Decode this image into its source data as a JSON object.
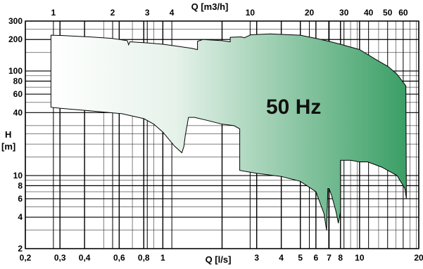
{
  "chart_data": {
    "type": "area",
    "title": "",
    "annotation": "50 Hz",
    "xlabel": "Q [l/s]",
    "x2label": "Q [m3/h]",
    "ylabel_line1": "H",
    "ylabel_line2": "[m]",
    "x_scale": "log",
    "y_scale": "log",
    "xlim": [
      0.2,
      20
    ],
    "ylim": [
      2,
      300
    ],
    "grid": true,
    "x_ticks": [
      {
        "v": 0.2,
        "label": "0,2"
      },
      {
        "v": 0.3,
        "label": "0,3"
      },
      {
        "v": 0.4,
        "label": "0,4"
      },
      {
        "v": 0.6,
        "label": "0,6"
      },
      {
        "v": 0.8,
        "label": "0,8"
      },
      {
        "v": 1,
        "label": "1"
      },
      {
        "v": 2,
        "label": ""
      },
      {
        "v": 3,
        "label": "3"
      },
      {
        "v": 4,
        "label": "4"
      },
      {
        "v": 5,
        "label": "5"
      },
      {
        "v": 6,
        "label": "6"
      },
      {
        "v": 7,
        "label": "7"
      },
      {
        "v": 8,
        "label": "8"
      },
      {
        "v": 10,
        "label": "10"
      },
      {
        "v": 20,
        "label": "20"
      }
    ],
    "x2_ticks": [
      {
        "v": 1,
        "label": "1"
      },
      {
        "v": 2,
        "label": "2"
      },
      {
        "v": 3,
        "label": "3"
      },
      {
        "v": 4,
        "label": "4"
      },
      {
        "v": 10,
        "label": "10"
      },
      {
        "v": 20,
        "label": "20"
      },
      {
        "v": 30,
        "label": "30"
      },
      {
        "v": 40,
        "label": "40"
      },
      {
        "v": 50,
        "label": "50"
      },
      {
        "v": 60,
        "label": "60"
      }
    ],
    "y_ticks": [
      {
        "v": 2,
        "label": "2"
      },
      {
        "v": 4,
        "label": "4"
      },
      {
        "v": 6,
        "label": "6"
      },
      {
        "v": 8,
        "label": "8"
      },
      {
        "v": 10,
        "label": "10"
      },
      {
        "v": 40,
        "label": "40"
      },
      {
        "v": 60,
        "label": "60"
      },
      {
        "v": 80,
        "label": "80"
      },
      {
        "v": 100,
        "label": "100"
      },
      {
        "v": 200,
        "label": "200"
      },
      {
        "v": 300,
        "label": "300"
      }
    ],
    "envelope": [
      [
        0.27,
        220
      ],
      [
        0.31,
        218
      ],
      [
        0.42,
        212
      ],
      [
        0.55,
        205
      ],
      [
        0.66,
        195
      ],
      [
        0.67,
        178
      ],
      [
        0.68,
        190
      ],
      [
        0.85,
        185
      ],
      [
        1.0,
        180
      ],
      [
        1.2,
        172
      ],
      [
        1.4,
        165
      ],
      [
        1.5,
        160
      ],
      [
        1.5,
        192
      ],
      [
        1.6,
        200
      ],
      [
        2.0,
        195
      ],
      [
        2.2,
        190
      ],
      [
        2.2,
        210
      ],
      [
        2.5,
        212
      ],
      [
        2.6,
        208
      ],
      [
        2.8,
        222
      ],
      [
        3.5,
        226
      ],
      [
        5.0,
        220
      ],
      [
        6.0,
        205
      ],
      [
        7.0,
        192
      ],
      [
        8.0,
        180
      ],
      [
        10,
        160
      ],
      [
        12,
        130
      ],
      [
        14,
        110
      ],
      [
        15.5,
        93
      ],
      [
        16.5,
        80
      ],
      [
        17.2,
        72
      ],
      [
        17.3,
        6
      ],
      [
        17.0,
        7.5
      ],
      [
        15.5,
        10
      ],
      [
        13,
        12
      ],
      [
        11,
        13.5
      ],
      [
        10,
        13.5
      ],
      [
        9,
        14
      ],
      [
        8,
        14
      ],
      [
        8,
        4.5
      ],
      [
        7.8,
        3.5
      ],
      [
        7.6,
        4.5
      ],
      [
        7.2,
        6.5
      ],
      [
        7,
        7.5
      ],
      [
        6.9,
        7.5
      ],
      [
        6.8,
        3
      ],
      [
        6.6,
        4.3
      ],
      [
        6.0,
        7
      ],
      [
        5.0,
        8.8
      ],
      [
        4.0,
        9.8
      ],
      [
        3.0,
        10.5
      ],
      [
        2.46,
        11.2
      ],
      [
        2.46,
        28
      ],
      [
        2.3,
        30
      ],
      [
        2.0,
        31
      ],
      [
        1.65,
        34
      ],
      [
        1.45,
        36
      ],
      [
        1.35,
        36
      ],
      [
        1.3,
        24
      ],
      [
        1.28,
        19
      ],
      [
        1.25,
        16.5
      ],
      [
        1.15,
        19
      ],
      [
        1.0,
        26
      ],
      [
        0.9,
        31
      ],
      [
        0.8,
        35
      ],
      [
        0.62,
        39
      ],
      [
        0.4,
        42
      ],
      [
        0.3,
        44
      ],
      [
        0.27,
        45
      ]
    ],
    "colors": {
      "fill_start": "#ffffff",
      "fill_end": "#3a9f65",
      "grid": "#000000",
      "background": "#ffffff"
    }
  }
}
